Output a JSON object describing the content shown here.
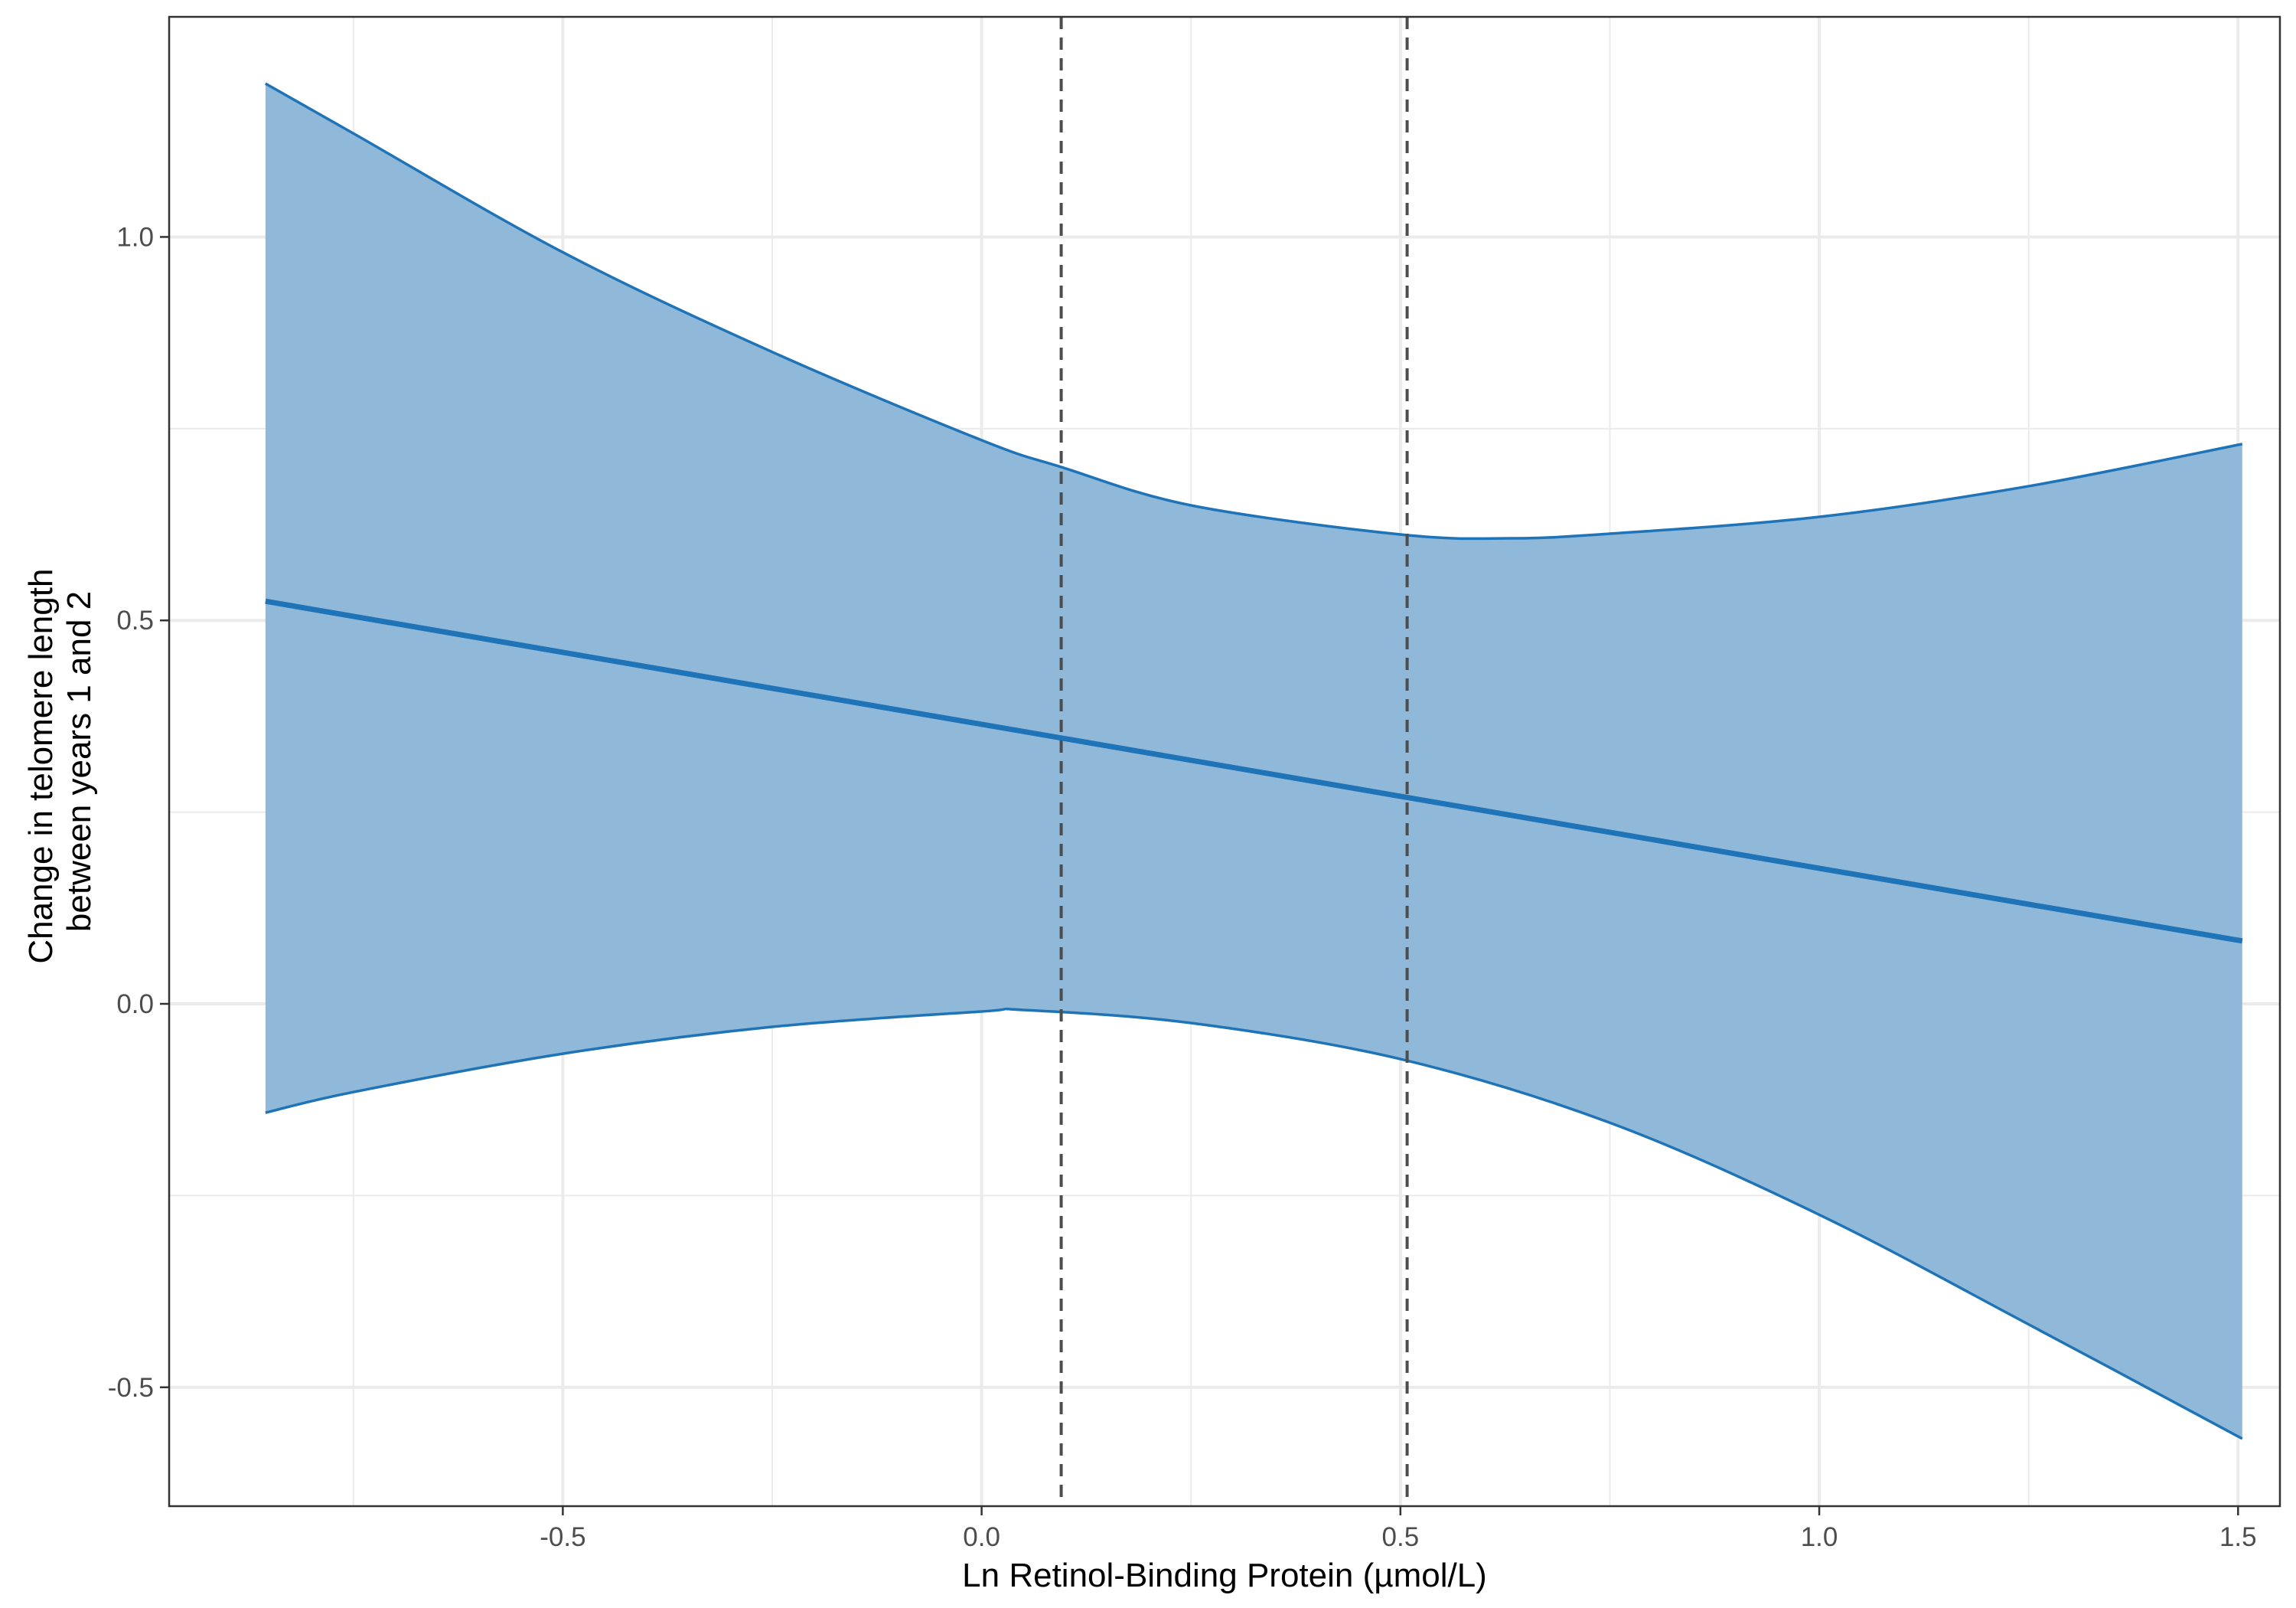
{
  "chart_data": {
    "type": "line",
    "xlabel": "Ln Retinol-Binding Protein (µmol/L)",
    "ylabel_lines": [
      "Change in telomere length",
      "between years 1 and 2"
    ],
    "xlim": [
      -0.97,
      1.55
    ],
    "ylim": [
      -0.655,
      1.287
    ],
    "x_ticks": [
      -0.5,
      0.0,
      0.5,
      1.0,
      1.5
    ],
    "x_tick_labels": [
      "-0.5",
      "0.0",
      "0.5",
      "1.0",
      "1.5"
    ],
    "y_ticks": [
      -0.5,
      0.0,
      0.5,
      1.0
    ],
    "y_tick_labels": [
      "-0.5",
      "0.0",
      "0.5",
      "1.0"
    ],
    "x_minor_ticks": [
      -0.75,
      -0.25,
      0.25,
      0.75,
      1.25
    ],
    "y_minor_ticks": [
      -0.25,
      0.25,
      0.75
    ],
    "grid": true,
    "reference_lines_x": [
      0.095,
      0.508
    ],
    "series": [
      {
        "role": "fit",
        "x": [
          -0.855,
          1.505
        ],
        "y": [
          0.525,
          0.082
        ]
      },
      {
        "role": "ci_upper",
        "x": [
          -0.855,
          -0.75,
          -0.5,
          -0.25,
          0.0,
          0.095,
          0.25,
          0.5,
          0.63,
          0.75,
          1.0,
          1.25,
          1.505
        ],
        "y": [
          1.2,
          1.135,
          0.98,
          0.85,
          0.735,
          0.7,
          0.65,
          0.612,
          0.607,
          0.613,
          0.635,
          0.675,
          0.73
        ]
      },
      {
        "role": "ci_lower",
        "x": [
          -0.855,
          -0.75,
          -0.5,
          -0.25,
          0.0,
          0.05,
          0.25,
          0.5,
          0.75,
          1.0,
          1.25,
          1.505
        ],
        "y": [
          -0.142,
          -0.115,
          -0.065,
          -0.03,
          -0.01,
          -0.008,
          -0.025,
          -0.072,
          -0.155,
          -0.275,
          -0.418,
          -0.567
        ]
      }
    ],
    "colors": {
      "line": "#1f73b7",
      "ribbon": "#8fb8d9",
      "grid": "#ebebeb",
      "panel_border": "#333333",
      "reference_line": "#4d4d4d"
    }
  }
}
